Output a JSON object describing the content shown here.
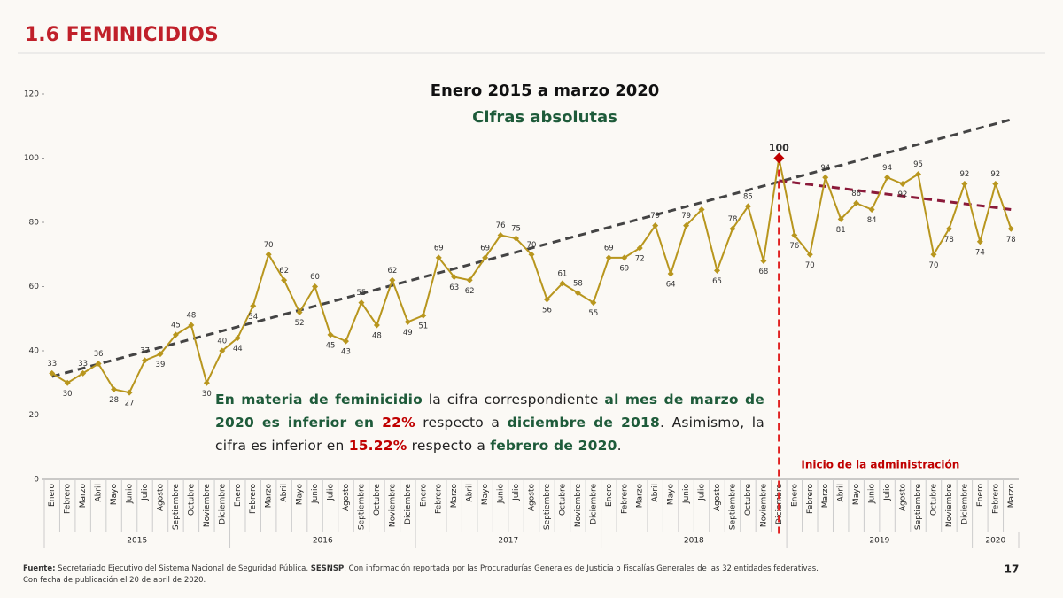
{
  "header": {
    "title": "1.6 FEMINICIDIOS"
  },
  "chart_data": {
    "type": "line",
    "title": "Enero 2015 a marzo 2020",
    "subtitle": "Cifras absolutas",
    "categories": [
      "Enero",
      "Febrero",
      "Marzo",
      "Abril",
      "Mayo",
      "Junio",
      "Julio",
      "Agosto",
      "Septiembre",
      "Octubre",
      "Noviembre",
      "Diciembre",
      "Enero",
      "Febrero",
      "Marzo",
      "Abril",
      "Mayo",
      "Junio",
      "Julio",
      "Agosto",
      "Septiembre",
      "Octubre",
      "Noviembre",
      "Diciembre",
      "Enero",
      "Febrero",
      "Marzo",
      "Abril",
      "Mayo",
      "Junio",
      "Julio",
      "Agosto",
      "Septiembre",
      "Octubre",
      "Noviembre",
      "Diciembre",
      "Enero",
      "Febrero",
      "Marzo",
      "Abril",
      "Mayo",
      "Junio",
      "Julio",
      "Agosto",
      "Septiembre",
      "Octubre",
      "Noviembre",
      "Diciembre",
      "Enero",
      "Febrero",
      "Marzo",
      "Abril",
      "Mayo",
      "Junio",
      "Julio",
      "Agosto",
      "Septiembre",
      "Octubre",
      "Noviembre",
      "Diciembre",
      "Enero",
      "Febrero",
      "Marzo"
    ],
    "groups": [
      {
        "label": "2015",
        "count": 12
      },
      {
        "label": "2016",
        "count": 12
      },
      {
        "label": "2017",
        "count": 12
      },
      {
        "label": "2018",
        "count": 12
      },
      {
        "label": "2019",
        "count": 12
      },
      {
        "label": "2020",
        "count": 3
      }
    ],
    "series": [
      {
        "name": "Feminicidios",
        "color": "#b8961e",
        "values": [
          33,
          30,
          33,
          36,
          28,
          27,
          37,
          39,
          45,
          48,
          30,
          40,
          44,
          54,
          70,
          62,
          52,
          60,
          45,
          43,
          55,
          48,
          62,
          49,
          51,
          69,
          63,
          62,
          69,
          76,
          75,
          70,
          56,
          61,
          58,
          55,
          69,
          69,
          72,
          79,
          64,
          79,
          84,
          65,
          78,
          85,
          68,
          100,
          76,
          70,
          94,
          81,
          86,
          84,
          94,
          92,
          95,
          70,
          78,
          92,
          74,
          92,
          78
        ],
        "value_labels": [
          "33",
          "30",
          "33",
          "36",
          "28",
          "27",
          "37",
          "39",
          "45",
          "48",
          "30",
          "40",
          "44",
          "54",
          "70",
          "62",
          "52",
          "60",
          "45",
          "43",
          "55",
          "48",
          "62",
          "49",
          "51",
          "69",
          "63",
          "62",
          "69",
          "76",
          "75",
          "70",
          "56",
          "61",
          "58",
          "55",
          "69",
          "69",
          "72",
          "79",
          "64",
          "79",
          null,
          "65",
          "78",
          "85",
          "68",
          "100",
          "76",
          "70",
          "94",
          "81",
          "86",
          "84",
          "94",
          "92",
          "95",
          "70",
          "78",
          "92",
          "74",
          "92",
          "78"
        ]
      }
    ],
    "highlight": {
      "index": 47,
      "color": "#c00000"
    },
    "trend_lines": [
      {
        "color": "#444444",
        "start_index": 0,
        "end_index": 62,
        "values": [
          32,
          112
        ]
      },
      {
        "color": "#8b1a3a",
        "start_index": 47,
        "end_index": 62,
        "values": [
          93,
          84
        ]
      }
    ],
    "marker_line": {
      "index": 47,
      "color": "#e02020",
      "label": "Inicio de la administración"
    },
    "ylim": [
      0,
      120
    ],
    "yticks": [
      0,
      20,
      40,
      60,
      80,
      100,
      120
    ],
    "grid": false
  },
  "annotation": {
    "segments": [
      {
        "text": "En materia de feminicidio",
        "style": "g"
      },
      {
        "text": " la cifra correspondiente ",
        "style": "n"
      },
      {
        "text": "al mes de marzo de 2020 es inferior en ",
        "style": "g"
      },
      {
        "text": "22%",
        "style": "r"
      },
      {
        "text": " respecto a ",
        "style": "n"
      },
      {
        "text": "diciembre de 2018",
        "style": "g"
      },
      {
        "text": ". Asimismo, la cifra es inferior en ",
        "style": "n"
      },
      {
        "text": "15.22%",
        "style": "r"
      },
      {
        "text": " respecto a ",
        "style": "n"
      },
      {
        "text": "febrero de 2020",
        "style": "g"
      },
      {
        "text": ".",
        "style": "n"
      }
    ]
  },
  "footer": {
    "segments": [
      {
        "text": "Fuente:",
        "style": "b"
      },
      {
        "text": " Secretariado Ejecutivo del Sistema Nacional de Seguridad Pública, ",
        "style": "n"
      },
      {
        "text": "SESNSP",
        "style": "b"
      },
      {
        "text": ". Con información reportada por las Procuradurías Generales de Justicia o Fiscalías Generales de las 32 entidades federativas.",
        "style": "n"
      }
    ],
    "line2": "Con fecha de publicación el 20  de abril de 2020.",
    "page": "17"
  }
}
